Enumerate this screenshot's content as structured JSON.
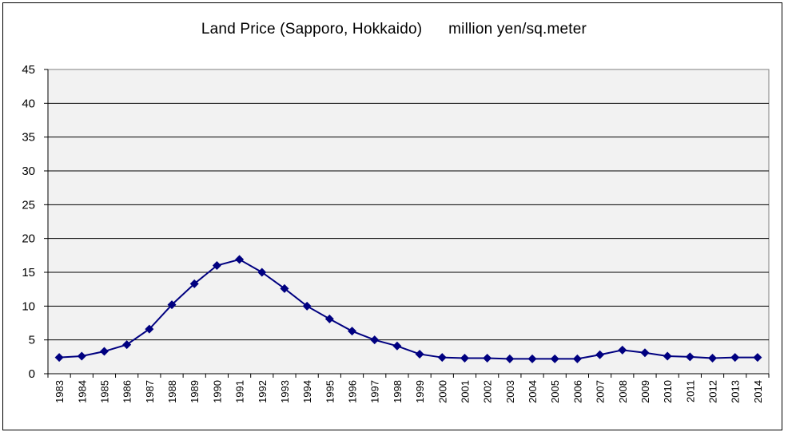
{
  "chart_data": {
    "type": "line",
    "title": "Land Price (Sapporo, Hokkaido)      million yen/sq.meter",
    "xlabel": "",
    "ylabel": "",
    "categories": [
      "1983",
      "1984",
      "1985",
      "1986",
      "1987",
      "1988",
      "1989",
      "1990",
      "1991",
      "1992",
      "1993",
      "1994",
      "1995",
      "1996",
      "1997",
      "1998",
      "1999",
      "2000",
      "2001",
      "2002",
      "2003",
      "2004",
      "2005",
      "2006",
      "2007",
      "2008",
      "2009",
      "2010",
      "2011",
      "2012",
      "2013",
      "2014"
    ],
    "series": [
      {
        "values": [
          2.4,
          2.6,
          3.3,
          4.3,
          6.6,
          10.2,
          13.3,
          16.0,
          16.9,
          15.0,
          12.6,
          10.0,
          8.1,
          6.3,
          5.0,
          4.1,
          2.9,
          2.4,
          2.3,
          2.3,
          2.2,
          2.2,
          2.2,
          2.2,
          2.8,
          3.5,
          3.1,
          2.6,
          2.5,
          2.3,
          2.4,
          2.4
        ],
        "color": "#000080",
        "marker": "diamond"
      }
    ],
    "ylim": [
      0,
      45
    ],
    "yticks": [
      "0",
      "5",
      "10",
      "15",
      "20",
      "25",
      "30",
      "35",
      "40",
      "45"
    ],
    "grid": true,
    "legend": "none",
    "plot_background": "#f2f2f2"
  }
}
